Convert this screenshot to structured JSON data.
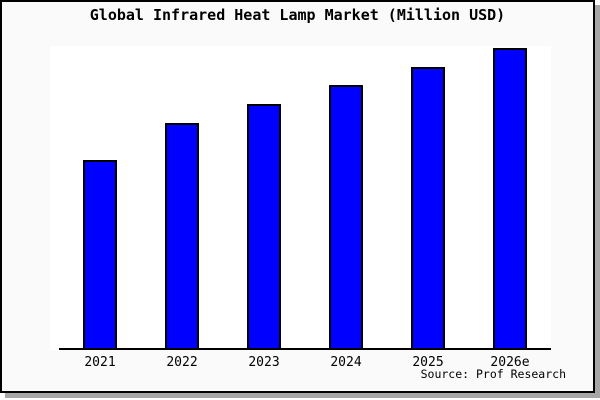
{
  "chart_data": {
    "type": "bar",
    "title": "Global Infrared Heat Lamp Market (Million USD)",
    "categories": [
      "2021",
      "2022",
      "2023",
      "2024",
      "2025",
      "2026e"
    ],
    "values": [
      62.7,
      75.0,
      81.3,
      87.7,
      93.8,
      100.0
    ],
    "value_units": "relative units (% of 2026e bar height); no y-axis tick labels are shown in the chart",
    "xlabel": "",
    "ylabel": "",
    "ylim": [
      0,
      101.3
    ],
    "grid": false,
    "legend": "none",
    "y_axis_labels_visible": false,
    "source_note": "Source: Prof Research"
  },
  "colors": {
    "bar_fill": "#0000ff",
    "bar_border": "#000000",
    "frame_border": "#000000",
    "frame_background": "#fafafa",
    "plot_background": "#ffffff",
    "shadow": "#a6a6a6",
    "text": "#000000"
  }
}
